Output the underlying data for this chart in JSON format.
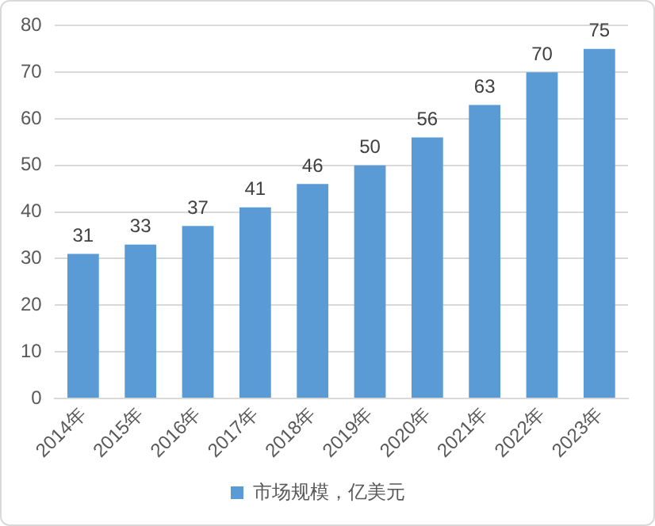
{
  "chart_data": {
    "type": "bar",
    "categories": [
      "2014年",
      "2015年",
      "2016年",
      "2017年",
      "2018年",
      "2019年",
      "2020年",
      "2021年",
      "2022年",
      "2023年"
    ],
    "series": [
      {
        "name": "市场规模，亿美元",
        "color": "#5b9bd5",
        "values": [
          31,
          33,
          37,
          41,
          46,
          50,
          56,
          63,
          70,
          75
        ]
      }
    ],
    "ylim": [
      0,
      80
    ],
    "yticks": [
      0,
      10,
      20,
      30,
      40,
      50,
      60,
      70,
      80
    ],
    "grid": "y",
    "legend": "bottom",
    "data_labels": true
  }
}
